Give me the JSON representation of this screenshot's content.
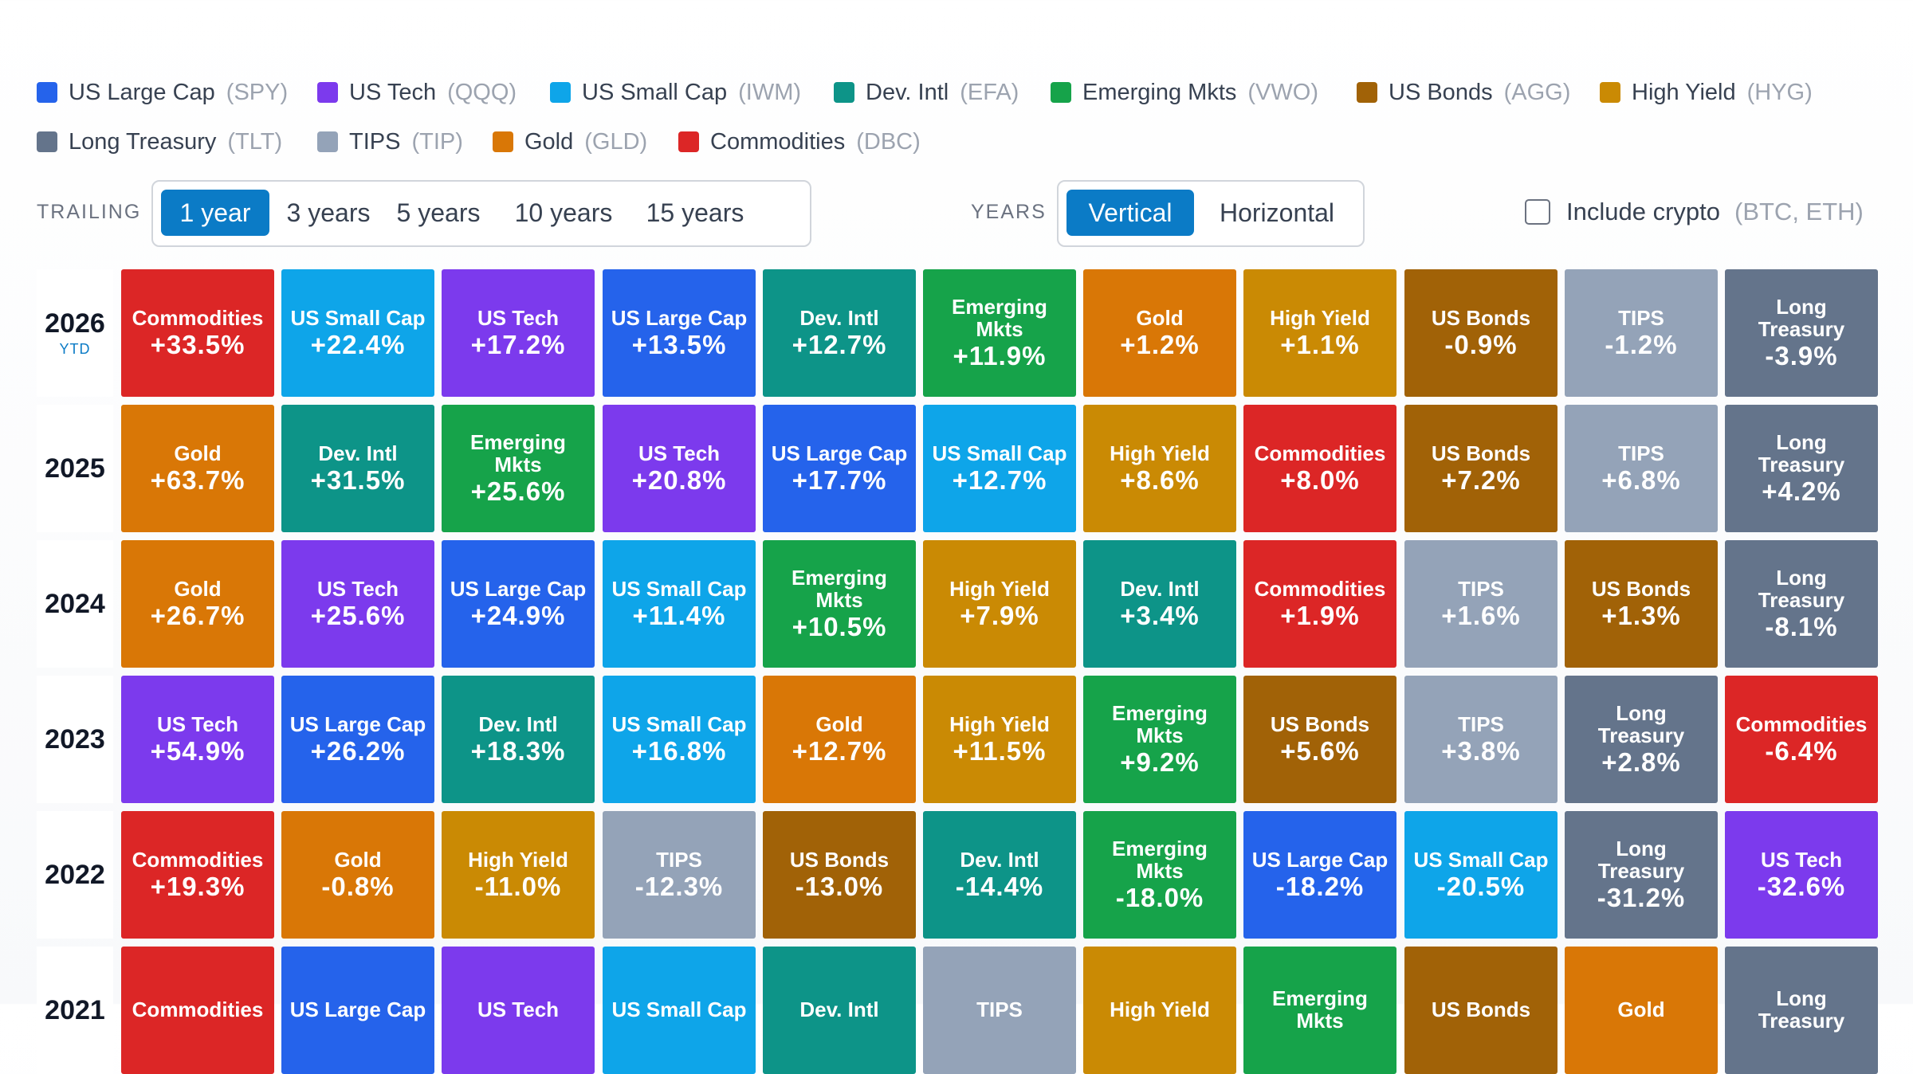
{
  "legend": [
    {
      "name": "US Large Cap",
      "ticker": "(SPY)",
      "color": "#2563eb"
    },
    {
      "name": "US Tech",
      "ticker": "(QQQ)",
      "color": "#7c3aed"
    },
    {
      "name": "US Small Cap",
      "ticker": "(IWM)",
      "color": "#0ea5e9"
    },
    {
      "name": "Dev. Intl",
      "ticker": "(EFA)",
      "color": "#0d9488"
    },
    {
      "name": "Emerging Mkts",
      "ticker": "(VWO)",
      "color": "#16a34a"
    },
    {
      "name": "US Bonds",
      "ticker": "(AGG)",
      "color": "#a16207"
    },
    {
      "name": "High Yield",
      "ticker": "(HYG)",
      "color": "#ca8a04"
    },
    {
      "name": "Long Treasury",
      "ticker": "(TLT)",
      "color": "#64748b"
    },
    {
      "name": "TIPS",
      "ticker": "(TIP)",
      "color": "#94a3b8"
    },
    {
      "name": "Gold",
      "ticker": "(GLD)",
      "color": "#d97706"
    },
    {
      "name": "Commodities",
      "ticker": "(DBC)",
      "color": "#dc2626"
    }
  ],
  "controls": {
    "trailing_label": "TRAILING",
    "trailing_options": [
      "1 year",
      "3 years",
      "5 years",
      "10 years",
      "15 years"
    ],
    "trailing_selected": "1 year",
    "years_label": "YEARS",
    "years_options": [
      "Vertical",
      "Horizontal"
    ],
    "years_selected": "Vertical",
    "crypto_label": "Include crypto",
    "crypto_sub": "(BTC, ETH)",
    "crypto_checked": false
  },
  "rows": [
    {
      "year": "2026",
      "sub": "YTD",
      "cells": [
        {
          "asset": "Commodities",
          "ret": "+33.5%"
        },
        {
          "asset": "US Small Cap",
          "ret": "+22.4%"
        },
        {
          "asset": "US Tech",
          "ret": "+17.2%"
        },
        {
          "asset": "US Large Cap",
          "ret": "+13.5%"
        },
        {
          "asset": "Dev. Intl",
          "ret": "+12.7%"
        },
        {
          "asset": "Emerging Mkts",
          "ret": "+11.9%"
        },
        {
          "asset": "Gold",
          "ret": "+1.2%"
        },
        {
          "asset": "High Yield",
          "ret": "+1.1%"
        },
        {
          "asset": "US Bonds",
          "ret": "-0.9%"
        },
        {
          "asset": "TIPS",
          "ret": "-1.2%"
        },
        {
          "asset": "Long Treasury",
          "ret": "-3.9%"
        }
      ]
    },
    {
      "year": "2025",
      "cells": [
        {
          "asset": "Gold",
          "ret": "+63.7%"
        },
        {
          "asset": "Dev. Intl",
          "ret": "+31.5%"
        },
        {
          "asset": "Emerging Mkts",
          "ret": "+25.6%"
        },
        {
          "asset": "US Tech",
          "ret": "+20.8%"
        },
        {
          "asset": "US Large Cap",
          "ret": "+17.7%"
        },
        {
          "asset": "US Small Cap",
          "ret": "+12.7%"
        },
        {
          "asset": "High Yield",
          "ret": "+8.6%"
        },
        {
          "asset": "Commodities",
          "ret": "+8.0%"
        },
        {
          "asset": "US Bonds",
          "ret": "+7.2%"
        },
        {
          "asset": "TIPS",
          "ret": "+6.8%"
        },
        {
          "asset": "Long Treasury",
          "ret": "+4.2%"
        }
      ]
    },
    {
      "year": "2024",
      "cells": [
        {
          "asset": "Gold",
          "ret": "+26.7%"
        },
        {
          "asset": "US Tech",
          "ret": "+25.6%"
        },
        {
          "asset": "US Large Cap",
          "ret": "+24.9%"
        },
        {
          "asset": "US Small Cap",
          "ret": "+11.4%"
        },
        {
          "asset": "Emerging Mkts",
          "ret": "+10.5%"
        },
        {
          "asset": "High Yield",
          "ret": "+7.9%"
        },
        {
          "asset": "Dev. Intl",
          "ret": "+3.4%"
        },
        {
          "asset": "Commodities",
          "ret": "+1.9%"
        },
        {
          "asset": "TIPS",
          "ret": "+1.6%"
        },
        {
          "asset": "US Bonds",
          "ret": "+1.3%"
        },
        {
          "asset": "Long Treasury",
          "ret": "-8.1%"
        }
      ]
    },
    {
      "year": "2023",
      "cells": [
        {
          "asset": "US Tech",
          "ret": "+54.9%"
        },
        {
          "asset": "US Large Cap",
          "ret": "+26.2%"
        },
        {
          "asset": "Dev. Intl",
          "ret": "+18.3%"
        },
        {
          "asset": "US Small Cap",
          "ret": "+16.8%"
        },
        {
          "asset": "Gold",
          "ret": "+12.7%"
        },
        {
          "asset": "High Yield",
          "ret": "+11.5%"
        },
        {
          "asset": "Emerging Mkts",
          "ret": "+9.2%"
        },
        {
          "asset": "US Bonds",
          "ret": "+5.6%"
        },
        {
          "asset": "TIPS",
          "ret": "+3.8%"
        },
        {
          "asset": "Long Treasury",
          "ret": "+2.8%"
        },
        {
          "asset": "Commodities",
          "ret": "-6.4%"
        }
      ]
    },
    {
      "year": "2022",
      "cells": [
        {
          "asset": "Commodities",
          "ret": "+19.3%"
        },
        {
          "asset": "Gold",
          "ret": "-0.8%"
        },
        {
          "asset": "High Yield",
          "ret": "-11.0%"
        },
        {
          "asset": "TIPS",
          "ret": "-12.3%"
        },
        {
          "asset": "US Bonds",
          "ret": "-13.0%"
        },
        {
          "asset": "Dev. Intl",
          "ret": "-14.4%"
        },
        {
          "asset": "Emerging Mkts",
          "ret": "-18.0%"
        },
        {
          "asset": "US Large Cap",
          "ret": "-18.2%"
        },
        {
          "asset": "US Small Cap",
          "ret": "-20.5%"
        },
        {
          "asset": "Long Treasury",
          "ret": "-31.2%"
        },
        {
          "asset": "US Tech",
          "ret": "-32.6%"
        }
      ]
    },
    {
      "year": "2021",
      "cells": [
        {
          "asset": "Commodities",
          "ret": ""
        },
        {
          "asset": "US Large Cap",
          "ret": ""
        },
        {
          "asset": "US Tech",
          "ret": ""
        },
        {
          "asset": "US Small Cap",
          "ret": ""
        },
        {
          "asset": "Dev. Intl",
          "ret": ""
        },
        {
          "asset": "TIPS",
          "ret": ""
        },
        {
          "asset": "High Yield",
          "ret": ""
        },
        {
          "asset": "Emerging Mkts",
          "ret": ""
        },
        {
          "asset": "US Bonds",
          "ret": ""
        },
        {
          "asset": "Gold",
          "ret": ""
        },
        {
          "asset": "Long Treasury",
          "ret": ""
        }
      ]
    }
  ]
}
